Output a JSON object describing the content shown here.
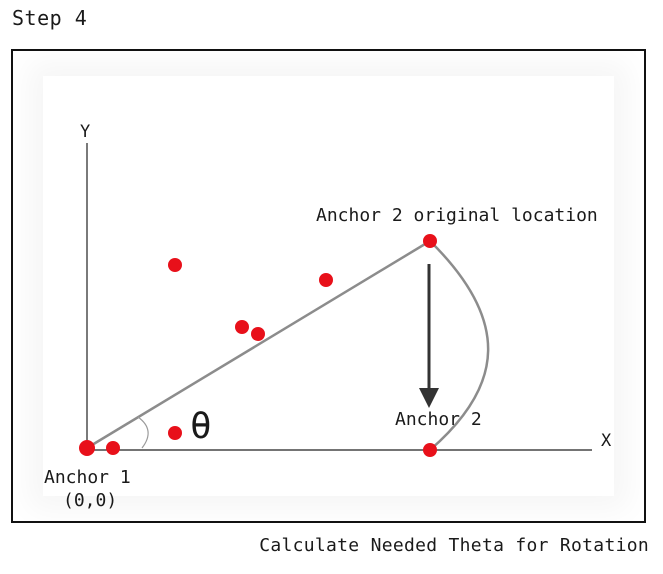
{
  "title": "Step 4",
  "caption": "Calculate Needed Theta for Rotation",
  "axes": {
    "x_label": "X",
    "y_label": "Y"
  },
  "labels": {
    "anchor1": "Anchor 1",
    "anchor1_coords": "(0,0)",
    "anchor2_original": "Anchor 2 original location",
    "anchor2": "Anchor 2",
    "theta": "θ"
  },
  "colors": {
    "point": "#e8101a",
    "line": "#8c8c8c",
    "arrow": "#333333",
    "axis": "#222222"
  }
}
